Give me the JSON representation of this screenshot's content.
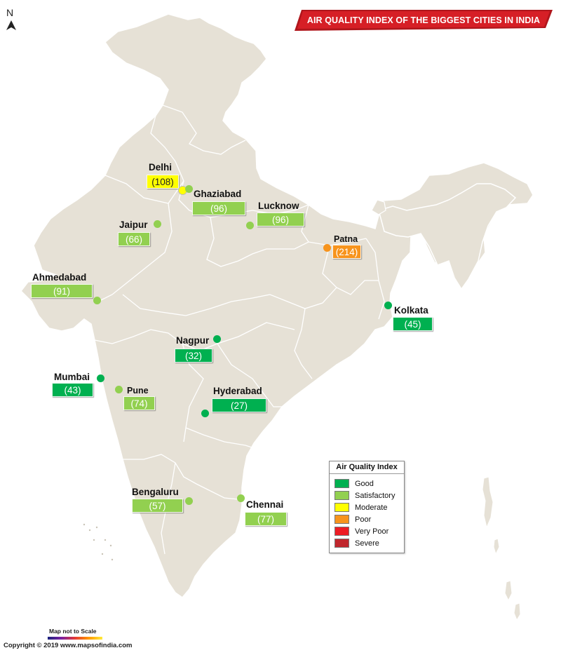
{
  "title": "AIR QUALITY INDEX OF THE BIGGEST CITIES IN INDIA",
  "north_label": "N",
  "colors": {
    "good": "#00b050",
    "satisfactory": "#92d050",
    "moderate": "#ffff00",
    "poor": "#f7941d",
    "very_poor": "#ed1c24",
    "severe": "#c0272d",
    "land": "#e6e1d6",
    "border": "#ffffff",
    "title_red": "#d61f26"
  },
  "cities": {
    "delhi": {
      "name": "Delhi",
      "aqi": "(108)",
      "category": "moderate"
    },
    "ghaziabad": {
      "name": "Ghaziabad",
      "aqi": "(96)",
      "category": "satisfactory"
    },
    "lucknow": {
      "name": "Lucknow",
      "aqi": "(96)",
      "category": "satisfactory"
    },
    "jaipur": {
      "name": "Jaipur",
      "aqi": "(66)",
      "category": "satisfactory"
    },
    "patna": {
      "name": "Patna",
      "aqi": "(214)",
      "category": "poor"
    },
    "ahmedabad": {
      "name": "Ahmedabad",
      "aqi": "(91)",
      "category": "satisfactory"
    },
    "kolkata": {
      "name": "Kolkata",
      "aqi": "(45)",
      "category": "good"
    },
    "nagpur": {
      "name": "Nagpur",
      "aqi": "(32)",
      "category": "good"
    },
    "mumbai": {
      "name": "Mumbai",
      "aqi": "(43)",
      "category": "good"
    },
    "pune": {
      "name": "Pune",
      "aqi": "(74)",
      "category": "satisfactory"
    },
    "hyderabad": {
      "name": "Hyderabad",
      "aqi": "(27)",
      "category": "good"
    },
    "bengaluru": {
      "name": "Bengaluru",
      "aqi": "(57)",
      "category": "satisfactory"
    },
    "chennai": {
      "name": "Chennai",
      "aqi": "(77)",
      "category": "satisfactory"
    }
  },
  "legend": {
    "title": "Air Quality Index",
    "items": [
      {
        "label": "Good",
        "color": "#00b050"
      },
      {
        "label": "Satisfactory",
        "color": "#92d050"
      },
      {
        "label": "Moderate",
        "color": "#ffff00"
      },
      {
        "label": "Poor",
        "color": "#f7941d"
      },
      {
        "label": "Very Poor",
        "color": "#ed1c24"
      },
      {
        "label": "Severe",
        "color": "#c0272d"
      }
    ]
  },
  "scale_note": "Map not to Scale",
  "copyright": "Copyright © 2019 www.mapsofindia.com"
}
